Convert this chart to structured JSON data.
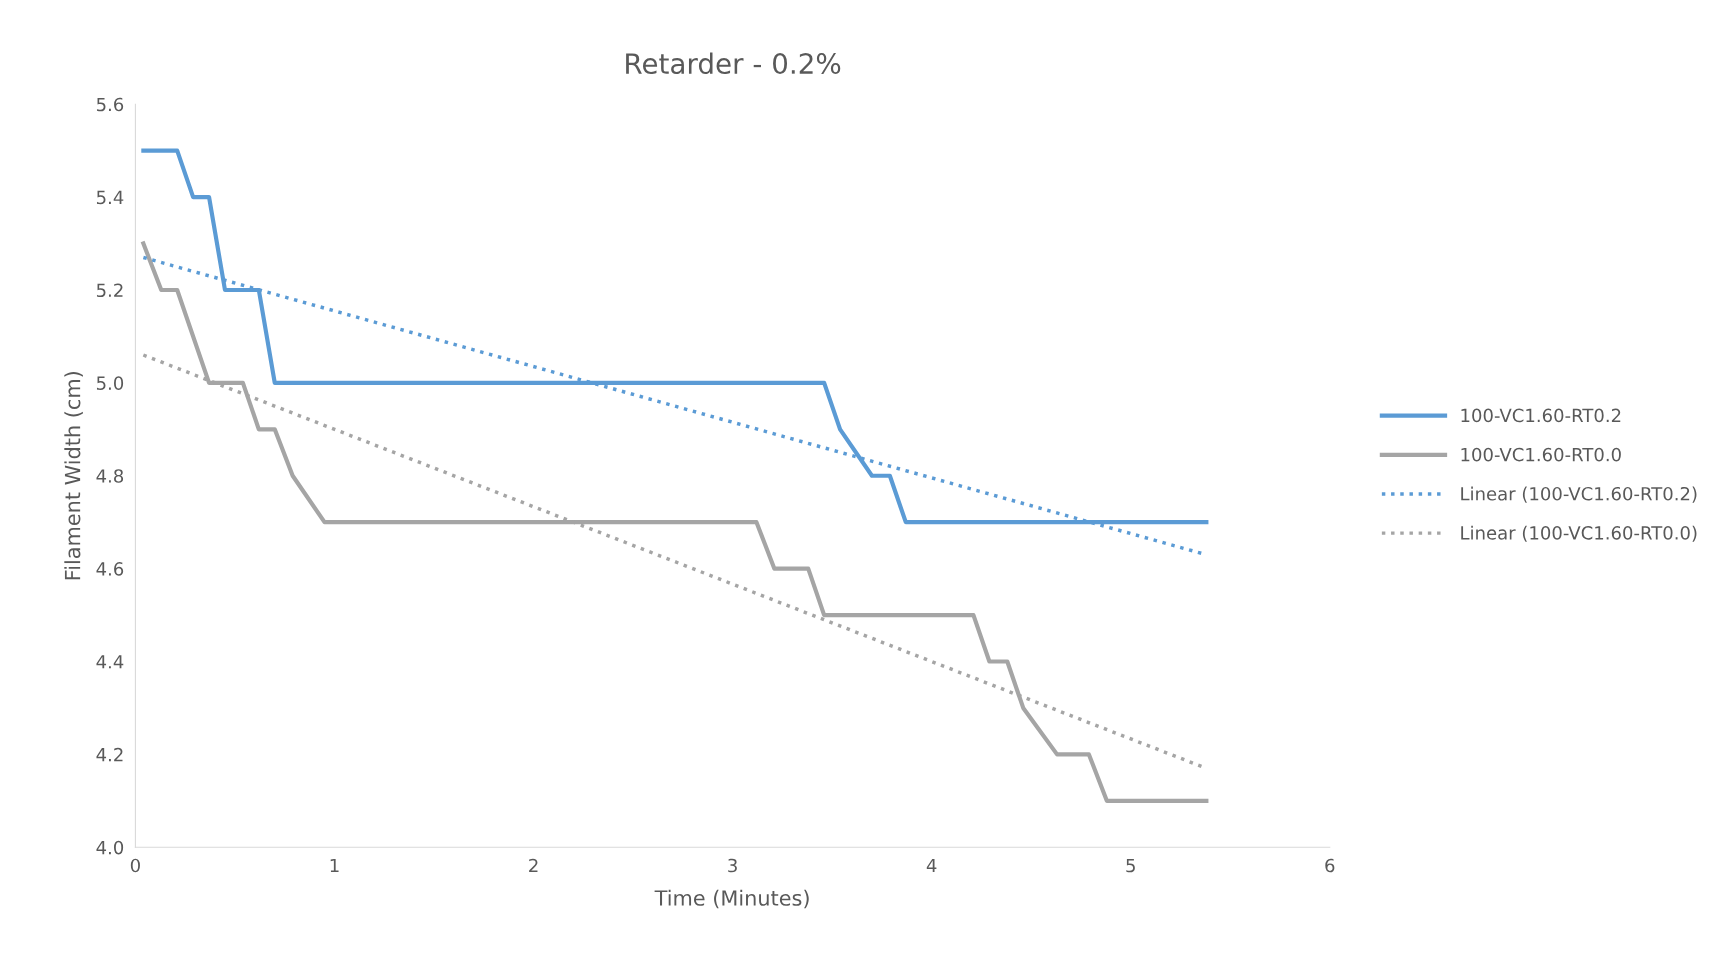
{
  "chart_data": {
    "type": "line",
    "title": "Retarder - 0.2%",
    "xlabel": "Time (Minutes)",
    "ylabel": "Filament Width (cm)",
    "xlim": [
      0,
      6
    ],
    "xticks": [
      0,
      1,
      2,
      3,
      4,
      5,
      6
    ],
    "ylim": [
      4.0,
      5.6
    ],
    "yticks": [
      {
        "value": 4.0,
        "label": "4.0"
      },
      {
        "value": 4.2,
        "label": "4.2"
      },
      {
        "value": 4.4,
        "label": "4.4"
      },
      {
        "value": 4.6,
        "label": "4.6"
      },
      {
        "value": 4.8,
        "label": "4.8"
      },
      {
        "value": 5.0,
        "label": "5.0"
      },
      {
        "value": 5.2,
        "label": "5.2"
      },
      {
        "value": 5.4,
        "label": "5.4"
      },
      {
        "value": 5.6,
        "label": "5.6"
      }
    ],
    "grid": false,
    "legend": "right",
    "marker": "none",
    "series": [
      {
        "name": "100-VC1.60-RT0.2",
        "color": "#5b9bd5",
        "line_style": "solid",
        "x": [
          0.04,
          0.21,
          0.29,
          0.37,
          0.45,
          0.62,
          0.7,
          3.46,
          3.54,
          3.7,
          3.79,
          3.87,
          5.38
        ],
        "values": [
          5.5,
          5.5,
          5.4,
          5.4,
          5.2,
          5.2,
          5.0,
          5.0,
          4.9,
          4.8,
          4.8,
          4.7,
          4.7
        ]
      },
      {
        "name": "100-VC1.60-RT0.0",
        "color": "#a5a5a5",
        "line_style": "solid",
        "x": [
          0.04,
          0.13,
          0.21,
          0.37,
          0.54,
          0.62,
          0.7,
          0.79,
          0.95,
          3.12,
          3.21,
          3.38,
          3.46,
          4.21,
          4.29,
          4.38,
          4.46,
          4.63,
          4.79,
          4.88,
          5.38
        ],
        "values": [
          5.3,
          5.2,
          5.2,
          5.0,
          5.0,
          4.9,
          4.9,
          4.8,
          4.7,
          4.7,
          4.6,
          4.6,
          4.5,
          4.5,
          4.4,
          4.4,
          4.3,
          4.2,
          4.2,
          4.1,
          4.1
        ]
      },
      {
        "name": "Linear (100-VC1.60-RT0.2)",
        "color": "#5b9bd5",
        "line_style": "dotted",
        "x": [
          0.04,
          5.38
        ],
        "values": [
          5.27,
          4.63
        ]
      },
      {
        "name": "Linear (100-VC1.60-RT0.0)",
        "color": "#a5a5a5",
        "line_style": "dotted",
        "x": [
          0.04,
          5.38
        ],
        "values": [
          5.06,
          4.17
        ]
      }
    ]
  }
}
